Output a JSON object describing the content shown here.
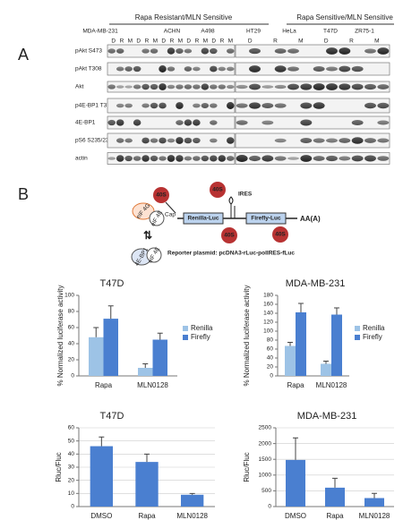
{
  "panel_a": {
    "label": "A",
    "groups": [
      "Rapa Resistant/MLN Sensitive",
      "Rapa Sensitive/MLN Sensitive"
    ],
    "cell_lines": [
      "MDA-MB-231",
      "ACHN",
      "A498",
      "HT29",
      "HeLa",
      "T47D",
      "ZR75-1"
    ],
    "lanes": [
      "D",
      "R",
      "M"
    ],
    "rows": [
      "pAkt S473",
      "pAkt T308",
      "Akt",
      "p4E-BP1 T37/46",
      "4E-BP1",
      "pS6 S235/236",
      "actin"
    ]
  },
  "panel_b": {
    "label": "B",
    "diagram": {
      "ribosome": "40S",
      "cap": "Cap",
      "ires": "IRES",
      "renilla": "Renilla-Luc",
      "firefly": "Firefly-Luc",
      "polya": "AA(A)",
      "factors": [
        "eIF 4G",
        "eIF 4E",
        "4E-BP1"
      ],
      "plasmid": "Reporter plasmid: pcDNA3-rLuc-polIRES-fLuc"
    }
  },
  "chart_data": [
    {
      "type": "bar",
      "title": "T47D",
      "y_label": "% Normalized luciferase activity",
      "categories": [
        "Rapa",
        "MLN0128"
      ],
      "series": [
        {
          "name": "Renilla",
          "color": "#9dc3e6",
          "values": [
            48,
            10
          ],
          "errors": [
            12,
            5
          ]
        },
        {
          "name": "Firefly",
          "color": "#4a7fd0",
          "values": [
            71,
            45
          ],
          "errors": [
            16,
            8
          ]
        }
      ],
      "ylim": [
        0,
        100
      ],
      "yticks": [
        0,
        20,
        40,
        60,
        80,
        100
      ],
      "grid": false,
      "legend": "right"
    },
    {
      "type": "bar",
      "title": "MDA-MB-231",
      "y_label": "% Normalized luciferase activity",
      "categories": [
        "Rapa",
        "MLN0128"
      ],
      "series": [
        {
          "name": "Renilla",
          "color": "#9dc3e6",
          "values": [
            67,
            27
          ],
          "errors": [
            8,
            6
          ]
        },
        {
          "name": "Firefly",
          "color": "#4a7fd0",
          "values": [
            142,
            137
          ],
          "errors": [
            20,
            15
          ]
        }
      ],
      "ylim": [
        0,
        180
      ],
      "yticks": [
        0,
        20,
        40,
        60,
        80,
        100,
        120,
        140,
        160,
        180
      ],
      "grid": false,
      "legend": "right"
    },
    {
      "type": "bar",
      "title": "T47D",
      "y_label": "Rluc/Fluc",
      "categories": [
        "DMSO",
        "Rapa",
        "MLN0128"
      ],
      "values": [
        46,
        34,
        9
      ],
      "errors": [
        7,
        6,
        1
      ],
      "color": "#4a7fd0",
      "ylim": [
        0,
        60
      ],
      "yticks": [
        0,
        10,
        20,
        30,
        40,
        50,
        60
      ],
      "grid": true
    },
    {
      "type": "bar",
      "title": "MDA-MB-231",
      "y_label": "Rluc/Fluc",
      "categories": [
        "DMSO",
        "Rapa",
        "MLN0128"
      ],
      "values": [
        1480,
        600,
        270
      ],
      "errors": [
        700,
        300,
        150
      ],
      "color": "#4a7fd0",
      "ylim": [
        0,
        2500
      ],
      "yticks": [
        0,
        500,
        1000,
        1500,
        2000,
        2500
      ],
      "grid": true
    }
  ]
}
